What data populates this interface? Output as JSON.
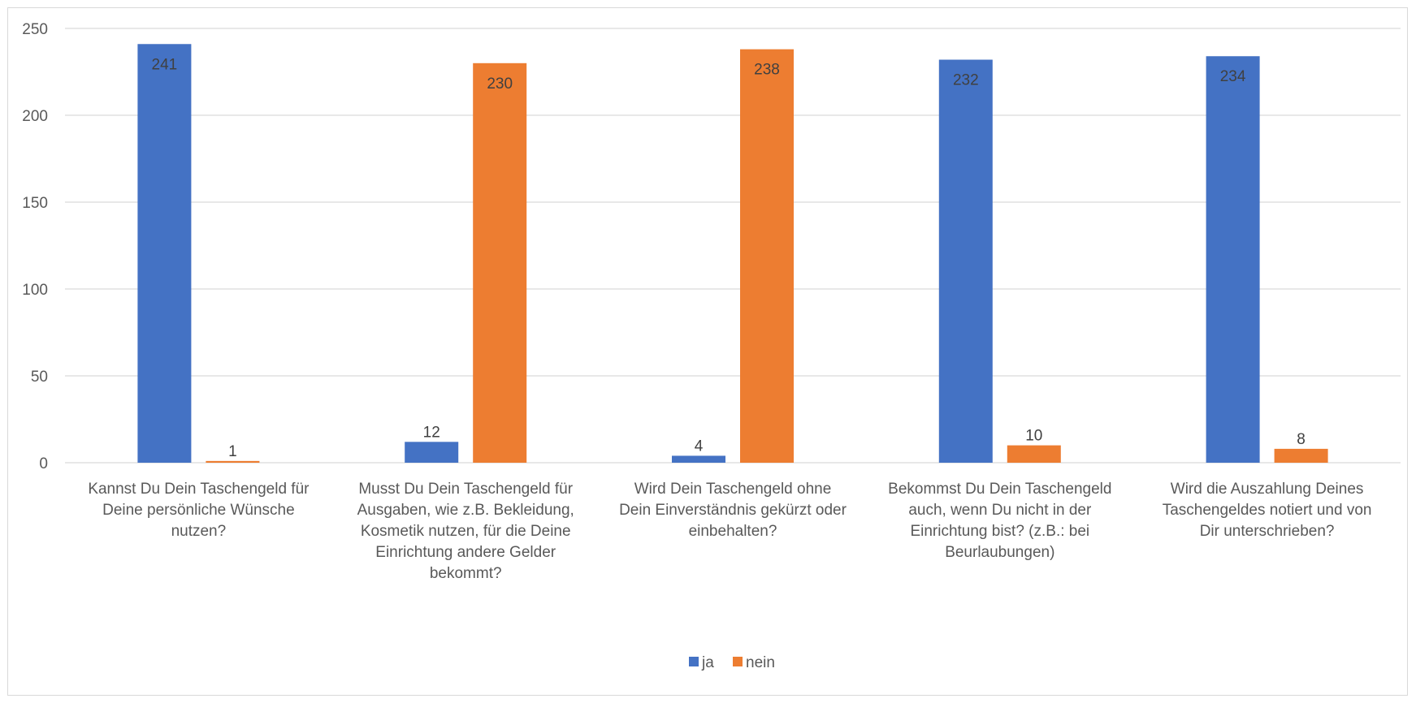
{
  "chart_data": {
    "type": "bar",
    "title": "",
    "xlabel": "",
    "ylabel": "",
    "ylim": [
      0,
      250
    ],
    "yticks": [
      "0",
      "50",
      "100",
      "150",
      "200",
      "250"
    ],
    "grid": true,
    "legend_position": "bottom",
    "categories": [
      [
        "Kannst Du Dein Taschengeld für",
        "Deine persönliche Wünsche",
        "nutzen?"
      ],
      [
        "Musst Du Dein Taschengeld für",
        "Ausgaben, wie z.B. Bekleidung,",
        "Kosmetik nutzen, für die Deine",
        "Einrichtung andere Gelder",
        "bekommt?"
      ],
      [
        "Wird Dein Taschengeld ohne",
        "Dein Einverständnis gekürzt oder",
        "einbehalten?"
      ],
      [
        "Bekommst Du Dein Taschengeld",
        "auch, wenn Du nicht in der",
        "Einrichtung bist? (z.B.: bei",
        "Beurlaubungen)"
      ],
      [
        "Wird die Auszahlung Deines",
        "Taschengeldes notiert und von",
        "Dir unterschrieben?"
      ]
    ],
    "series": [
      {
        "name": "ja",
        "color": "#4472c4",
        "values": [
          241,
          12,
          4,
          232,
          234
        ]
      },
      {
        "name": "nein",
        "color": "#ed7d31",
        "values": [
          1,
          230,
          238,
          10,
          8
        ]
      }
    ]
  }
}
